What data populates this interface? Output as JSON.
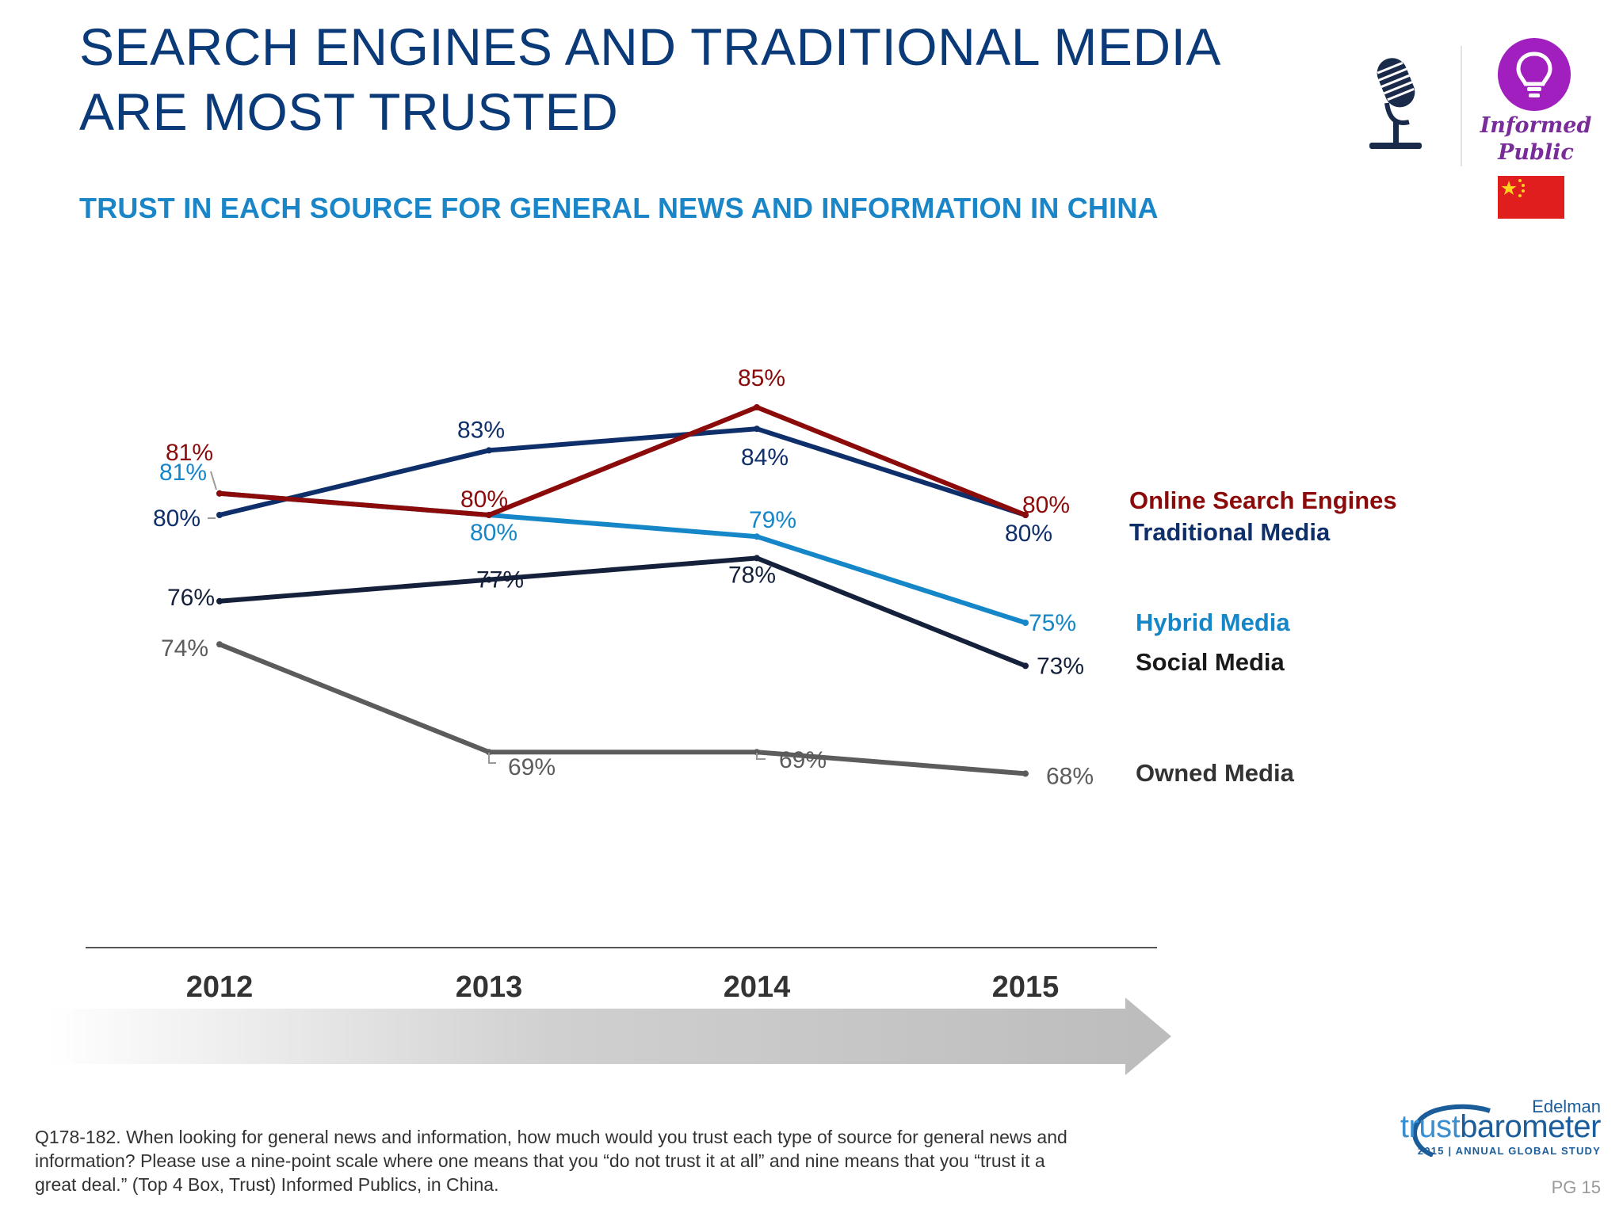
{
  "header": {
    "title_line1": "SEARCH ENGINES AND TRADITIONAL MEDIA",
    "title_line2": "ARE MOST TRUSTED",
    "subtitle": "TRUST IN EACH SOURCE FOR GENERAL NEWS AND INFORMATION IN CHINA"
  },
  "badge": {
    "label_line1": "Informed",
    "label_line2": "Public",
    "icons": [
      "microphone-icon",
      "lightbulb-icon",
      "china-flag-icon"
    ]
  },
  "chart_data": {
    "type": "line",
    "categories": [
      "2012",
      "2013",
      "2014",
      "2015"
    ],
    "ylabel": "",
    "xlabel": "",
    "ylim": [
      60,
      90
    ],
    "series": [
      {
        "key": "search",
        "name": "Online Search Engines",
        "color": "#8b0a0a",
        "values": [
          81,
          80,
          85,
          80
        ],
        "labels": [
          "81%",
          "80%",
          "85%",
          "80%"
        ]
      },
      {
        "key": "traditional",
        "name": "Traditional Media",
        "color": "#0f2f6b",
        "values": [
          80,
          83,
          84,
          80
        ],
        "labels": [
          "80%",
          "83%",
          "84%",
          "80%"
        ]
      },
      {
        "key": "hybrid",
        "name": "Hybrid Media",
        "color": "#1586c8",
        "values": [
          81,
          80,
          79,
          75
        ],
        "labels": [
          "81%",
          "80%",
          "79%",
          "75%"
        ]
      },
      {
        "key": "social",
        "name": "Social Media",
        "color": "#15213a",
        "values": [
          76,
          77,
          78,
          73
        ],
        "labels": [
          "76%",
          "77%",
          "78%",
          "73%"
        ]
      },
      {
        "key": "owned",
        "name": "Owned Media",
        "color": "#5c5c5c",
        "values": [
          74,
          69,
          69,
          68
        ],
        "labels": [
          "74%",
          "69%",
          "69%",
          "68%"
        ]
      }
    ]
  },
  "footnote": "Q178-182. When looking for general news and information, how much would you trust each type of source for general news and information? Please use a nine-point scale where one means that you “do not trust it at all” and nine means that you “trust it a great deal.” (Top 4 Box, Trust) Informed Publics, in China.",
  "brand": {
    "edelman": "Edelman",
    "trust": "trust",
    "barometer": "barometer",
    "study": "2015 | ANNUAL GLOBAL STUDY"
  },
  "page_number": "PG 15"
}
